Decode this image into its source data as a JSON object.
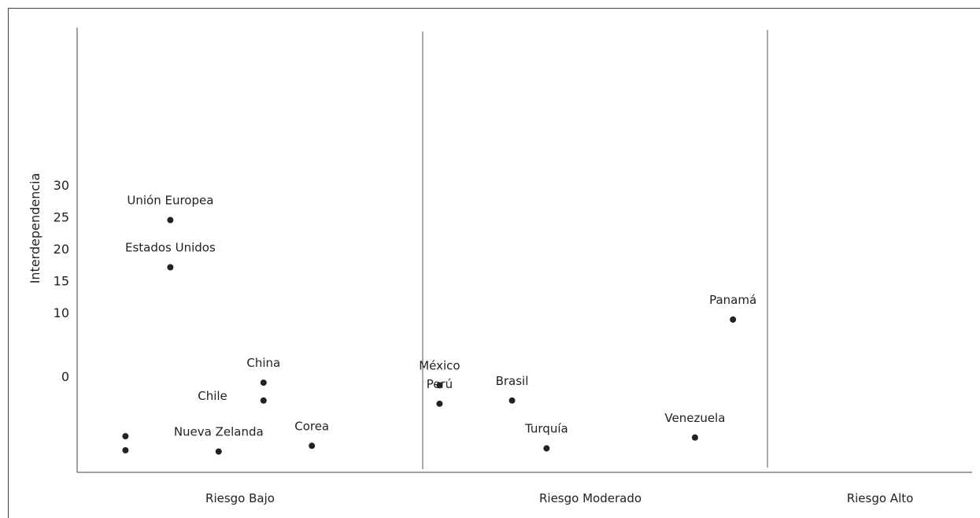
{
  "chart_data": {
    "type": "scatter",
    "ylabel": "Interdependencia",
    "xlabel": "",
    "y_ticks": [
      "30",
      "25",
      "20",
      "15",
      "10",
      "0"
    ],
    "categories": [
      "Riesgo Bajo",
      "Riesgo Moderado",
      "Riesgo Alto"
    ],
    "points": [
      {
        "label": "Unión Europea",
        "x": 1.27,
        "y": 24.5
      },
      {
        "label": "Estados Unidos",
        "x": 1.27,
        "y": 17.1
      },
      {
        "label": "China",
        "x": 1.54,
        "y": -1.0
      },
      {
        "label": "Chile",
        "x": 1.54,
        "y": -3.8
      },
      {
        "label": "Corea",
        "x": 1.68,
        "y": -10.9
      },
      {
        "label": "Nueva Zelanda",
        "x": 1.41,
        "y": -11.8
      },
      {
        "label": "",
        "x": 1.14,
        "y": -9.4
      },
      {
        "label": "",
        "x": 1.14,
        "y": -11.6
      },
      {
        "label": "México",
        "x": 2.05,
        "y": -1.4
      },
      {
        "label": "Perú",
        "x": 2.05,
        "y": -4.3
      },
      {
        "label": "Brasil",
        "x": 2.26,
        "y": -3.8
      },
      {
        "label": "Turquía",
        "x": 2.36,
        "y": -11.3
      },
      {
        "label": "Venezuela",
        "x": 2.79,
        "y": -9.6
      },
      {
        "label": "Panamá",
        "x": 2.9,
        "y": 8.9
      }
    ],
    "grid": false,
    "legend": "none"
  },
  "colors": {
    "point": "#222222",
    "axis": "#444444",
    "divider": "#555555"
  }
}
